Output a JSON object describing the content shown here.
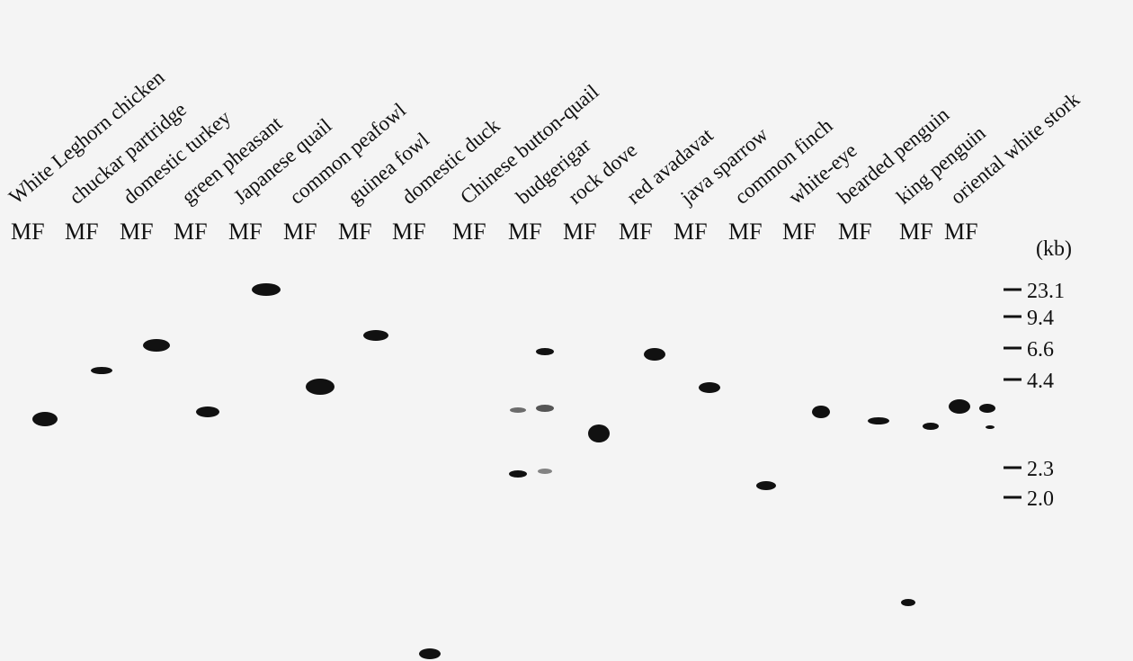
{
  "lanes": [
    {
      "species": "White Leghorn chicken",
      "label": "MF"
    },
    {
      "species": "chuckar partridge",
      "label": "MF"
    },
    {
      "species": "domestic turkey",
      "label": "MF"
    },
    {
      "species": "green pheasant",
      "label": "MF"
    },
    {
      "species": "Japanese quail",
      "label": "MF"
    },
    {
      "species": "common peafowl",
      "label": "MF"
    },
    {
      "species": "guinea fowl",
      "label": "MF"
    },
    {
      "species": "domestic duck",
      "label": "MF"
    },
    {
      "species": "Chinese button-quail",
      "label": "MF"
    },
    {
      "species": "budgerigar",
      "label": "MF"
    },
    {
      "species": "rock dove",
      "label": "MF"
    },
    {
      "species": "red avadavat",
      "label": "MF"
    },
    {
      "species": "java sparrow",
      "label": "MF"
    },
    {
      "species": "common finch",
      "label": "MF"
    },
    {
      "species": "white-eye",
      "label": "MF"
    },
    {
      "species": "bearded penguin",
      "label": "MF"
    },
    {
      "species": "king penguin",
      "label": "MF"
    },
    {
      "species": "oriental white stork",
      "label": "MF"
    }
  ],
  "markers": {
    "unit": "(kb)",
    "sizes": [
      "23.1",
      "9.4",
      "6.6",
      "4.4",
      "2.3",
      "2.0"
    ]
  }
}
